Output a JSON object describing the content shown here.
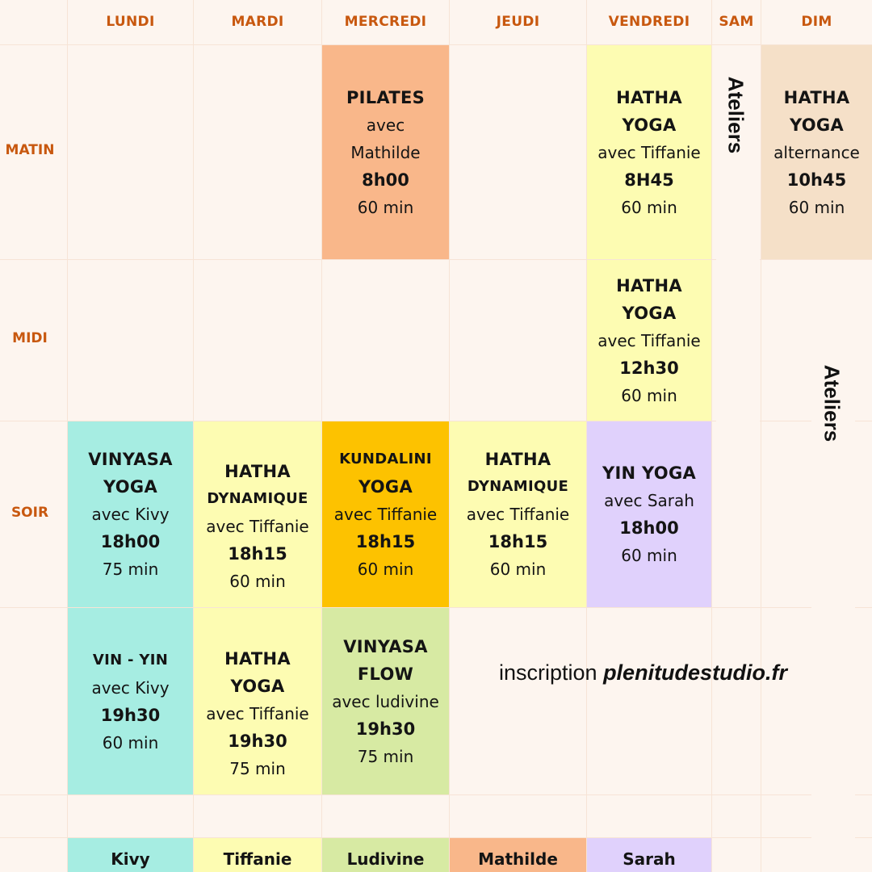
{
  "days": [
    "LUNDI",
    "MARDI",
    "MERCREDI",
    "JEUDI",
    "VENDREDI",
    "SAM",
    "DIM"
  ],
  "periods": [
    "MATIN",
    "MIDI",
    "SOIR"
  ],
  "classes": {
    "pilates_mer": {
      "title": [
        "PILATES"
      ],
      "teacher": [
        "avec",
        "Mathilde"
      ],
      "time": "8h00",
      "duration": "60 min",
      "color": "#f9b78a"
    },
    "hatha_ven_matin": {
      "title": [
        "HATHA",
        "YOGA"
      ],
      "teacher": [
        "avec Tiffanie"
      ],
      "time": "8H45",
      "duration": "60 min",
      "color": "#fdfcb2"
    },
    "hatha_dim": {
      "title": [
        "HATHA",
        "YOGA"
      ],
      "teacher": [
        "alternance"
      ],
      "time": "10h45",
      "duration": "60 min",
      "color": "#f5e0c8"
    },
    "hatha_ven_midi": {
      "title": [
        "HATHA",
        "YOGA"
      ],
      "teacher": [
        "avec Tiffanie"
      ],
      "time": "12h30",
      "duration": "60 min",
      "color": "#fdfcb2"
    },
    "vinyasa_lun": {
      "title": [
        "VINYASA",
        "YOGA"
      ],
      "teacher": [
        "avec Kivy"
      ],
      "time": "18h00",
      "duration": "75 min",
      "color": "#a6ede2"
    },
    "hatha_dyn_mar": {
      "title": [
        "HATHA",
        "DYNAMIQUE"
      ],
      "teacher": [
        "avec Tiffanie"
      ],
      "time": "18h15",
      "duration": "60 min",
      "color": "#fdfcb2"
    },
    "kundalini_mer": {
      "title": [
        "KUNDALINI",
        "YOGA"
      ],
      "teacher": [
        "avec Tiffanie"
      ],
      "time": "18h15",
      "duration": "60 min",
      "color": "#fdc200"
    },
    "hatha_dyn_jeu": {
      "title": [
        "HATHA",
        "DYNAMIQUE"
      ],
      "teacher": [
        "avec Tiffanie"
      ],
      "time": "18h15",
      "duration": "60 min",
      "color": "#fdfcb2"
    },
    "yin_ven": {
      "title": [
        "YIN YOGA"
      ],
      "teacher": [
        "avec Sarah"
      ],
      "time": "18h00",
      "duration": "60 min",
      "color": "#e0d1fc"
    },
    "vinyin_lun": {
      "title": [
        "VIN - YIN"
      ],
      "teacher": [
        "avec Kivy"
      ],
      "time": "19h30",
      "duration": "60 min",
      "color": "#a6ede2"
    },
    "hatha_mar_soir": {
      "title": [
        "HATHA",
        "YOGA"
      ],
      "teacher": [
        "avec Tiffanie"
      ],
      "time": "19h30",
      "duration": "75 min",
      "color": "#fdfcb2"
    },
    "vinyasa_flow_mer": {
      "title": [
        "VINYASA",
        "FLOW"
      ],
      "teacher": [
        "avec ludivine"
      ],
      "time": "19h30",
      "duration": "75 min",
      "color": "#d7eaa3"
    }
  },
  "ateliers": "Ateliers",
  "inscription": {
    "prefix": "inscription ",
    "site": "plenitudestudio.fr"
  },
  "legend": [
    {
      "name": "Kivy",
      "color": "#a6ede2"
    },
    {
      "name": "Tiffanie",
      "color": "#fdfcb2"
    },
    {
      "name": "Ludivine",
      "color": "#d7eaa3"
    },
    {
      "name": "Mathilde",
      "color": "#f9b78a"
    },
    {
      "name": "Sarah",
      "color": "#e0d1fc"
    }
  ]
}
